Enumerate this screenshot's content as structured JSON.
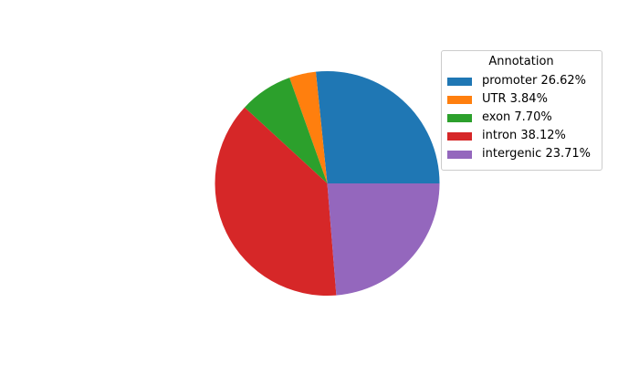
{
  "canvas": {
    "background": "#ffffff"
  },
  "chart_data": {
    "type": "pie",
    "legend_title": "Annotation",
    "legend_position": "upper right",
    "start_angle": 0,
    "counterclock": true,
    "categories": [
      "promoter",
      "UTR",
      "exon",
      "intron",
      "intergenic"
    ],
    "values": [
      26.62,
      3.84,
      7.7,
      38.12,
      23.71
    ],
    "colors": [
      "#1f77b4",
      "#ff7f0e",
      "#2ca02c",
      "#d62728",
      "#9467bd"
    ],
    "items": [
      {
        "label": "promoter 26.62%",
        "color": "#1f77b4",
        "value": 26.62
      },
      {
        "label": "UTR 3.84%",
        "color": "#ff7f0e",
        "value": 3.84
      },
      {
        "label": "exon 7.70%",
        "color": "#2ca02c",
        "value": 7.7
      },
      {
        "label": "intron 38.12%",
        "color": "#d62728",
        "value": 38.12
      },
      {
        "label": "intergenic 23.71%",
        "color": "#9467bd",
        "value": 23.71
      }
    ]
  }
}
